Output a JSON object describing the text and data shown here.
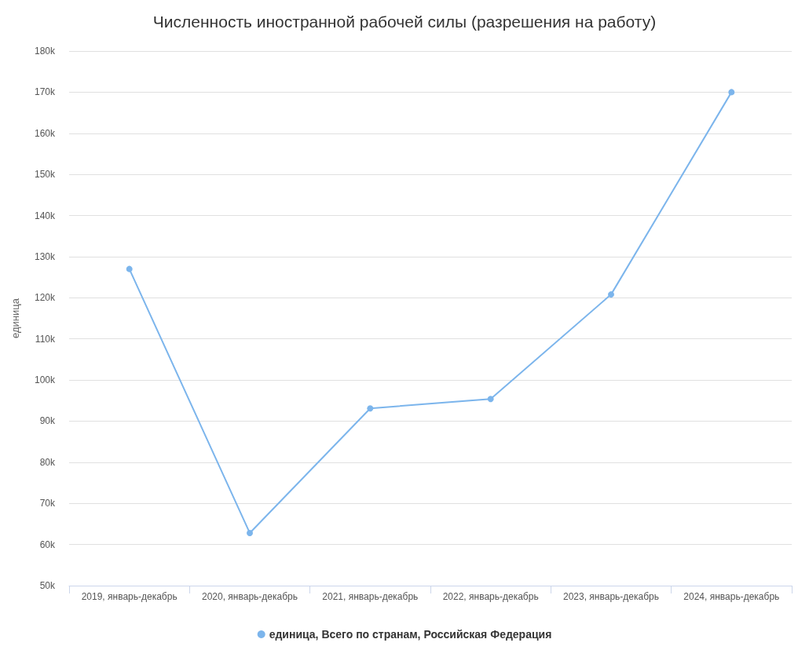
{
  "chart_data": {
    "type": "line",
    "title": "Численность иностранной рабочей силы (разрешения на работу)",
    "ylabel": "единица",
    "categories": [
      "2019, январь-декабрь",
      "2020, январь-декабрь",
      "2021, январь-декабрь",
      "2022, январь-декабрь",
      "2023, январь-декабрь",
      "2024, январь-декабрь"
    ],
    "series": [
      {
        "name": "единица, Всего по странам, Российская Федерация",
        "color": "#7cb5ec",
        "values": [
          127000,
          62800,
          93100,
          95400,
          120800,
          170000
        ]
      }
    ],
    "ylim": [
      50000,
      180000
    ],
    "yticks": [
      {
        "value": 50000,
        "label": "50k"
      },
      {
        "value": 60000,
        "label": "60k"
      },
      {
        "value": 70000,
        "label": "70k"
      },
      {
        "value": 80000,
        "label": "80k"
      },
      {
        "value": 90000,
        "label": "90k"
      },
      {
        "value": 100000,
        "label": "100k"
      },
      {
        "value": 110000,
        "label": "110k"
      },
      {
        "value": 120000,
        "label": "120k"
      },
      {
        "value": 130000,
        "label": "130k"
      },
      {
        "value": 140000,
        "label": "140k"
      },
      {
        "value": 150000,
        "label": "150k"
      },
      {
        "value": 160000,
        "label": "160k"
      },
      {
        "value": 170000,
        "label": "170k"
      },
      {
        "value": 180000,
        "label": "180k"
      }
    ],
    "grid": "y",
    "legend": "bottom",
    "marker": "circle",
    "line_style": "solid"
  }
}
